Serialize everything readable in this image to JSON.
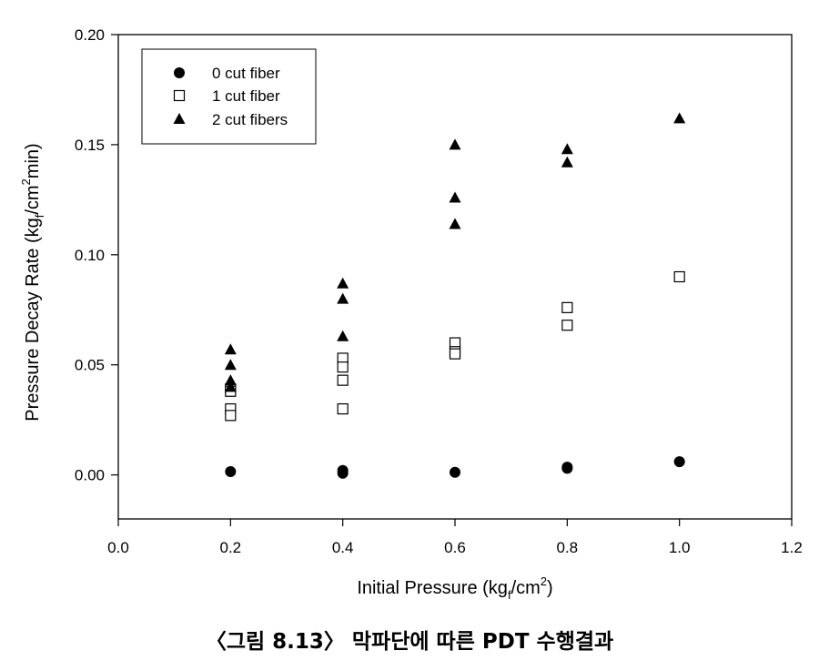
{
  "chart_data": {
    "type": "scatter",
    "xlabel": "Initial Pressure (kg",
    "xlabel_sub": "f",
    "xlabel_mid": "/cm",
    "xlabel_sup": "2",
    "xlabel_end": ")",
    "ylabel": "Pressure Decay Rate (kg",
    "ylabel_sub": "f",
    "ylabel_mid": "/cm",
    "ylabel_sup": "2",
    "ylabel_end": "min)",
    "xlim": [
      0.0,
      1.2
    ],
    "ylim": [
      -0.02,
      0.2
    ],
    "x_ticks": [
      "0.0",
      "0.2",
      "0.4",
      "0.6",
      "0.8",
      "1.0",
      "1.2"
    ],
    "y_ticks": [
      "0.00",
      "0.05",
      "0.10",
      "0.15",
      "0.20"
    ],
    "grid": false,
    "legend_position": "top-left",
    "series": [
      {
        "name": "0 cut fiber",
        "marker": "filled-circle",
        "points": [
          [
            0.2,
            0.0015
          ],
          [
            0.4,
            0.002
          ],
          [
            0.4,
            0.0008
          ],
          [
            0.6,
            0.0012
          ],
          [
            0.8,
            0.0035
          ],
          [
            0.8,
            0.003
          ],
          [
            1.0,
            0.006
          ]
        ]
      },
      {
        "name": "1 cut fiber",
        "marker": "open-square",
        "points": [
          [
            0.2,
            0.039
          ],
          [
            0.2,
            0.038
          ],
          [
            0.2,
            0.03
          ],
          [
            0.2,
            0.027
          ],
          [
            0.4,
            0.053
          ],
          [
            0.4,
            0.049
          ],
          [
            0.4,
            0.043
          ],
          [
            0.4,
            0.03
          ],
          [
            0.6,
            0.06
          ],
          [
            0.6,
            0.056
          ],
          [
            0.6,
            0.055
          ],
          [
            0.8,
            0.076
          ],
          [
            0.8,
            0.068
          ],
          [
            1.0,
            0.09
          ]
        ]
      },
      {
        "name": "2 cut fibers",
        "marker": "filled-triangle",
        "points": [
          [
            0.2,
            0.057
          ],
          [
            0.2,
            0.05
          ],
          [
            0.2,
            0.043
          ],
          [
            0.2,
            0.04
          ],
          [
            0.4,
            0.087
          ],
          [
            0.4,
            0.08
          ],
          [
            0.4,
            0.063
          ],
          [
            0.6,
            0.15
          ],
          [
            0.6,
            0.126
          ],
          [
            0.6,
            0.114
          ],
          [
            0.8,
            0.148
          ],
          [
            0.8,
            0.142
          ],
          [
            1.0,
            0.162
          ]
        ]
      }
    ]
  },
  "caption": "〈그림 8.13〉 막파단에 따른 PDT 수행결과"
}
